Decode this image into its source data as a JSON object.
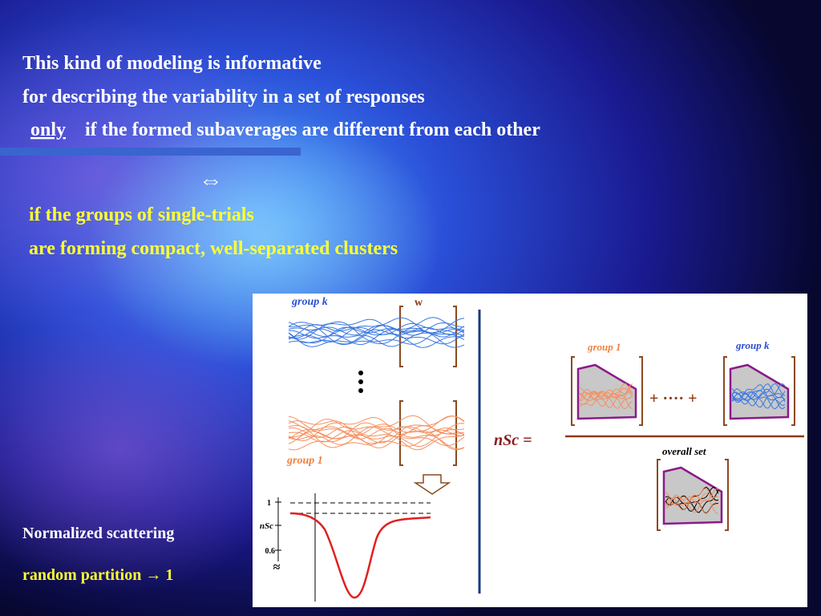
{
  "intro": {
    "line1": "This kind of modeling is informative",
    "line2": "for describing the variability in a set of responses",
    "line3_emph": "only",
    "line3_rest": "if the formed subaverages are different from each other"
  },
  "equivalence": "⇔",
  "condition": {
    "line1": "if the groups of single-trials",
    "line2": "are forming compact, well-separated clusters"
  },
  "figure": {
    "group_k_left": "group k",
    "window": "w",
    "group_1_left": "group 1",
    "nsc_axis_top": "1",
    "nsc_axis_label": "nSc",
    "nsc_axis_bottom": "0.6",
    "approx": "≈",
    "formula_lhs": "nSc =",
    "plus_dots": "+ ···· +",
    "group_1_right": "group 1",
    "group_k_right": "group k",
    "overall_set": "overall set"
  },
  "footer": {
    "line1": "Normalized scattering",
    "line2": "random partition → 1"
  }
}
